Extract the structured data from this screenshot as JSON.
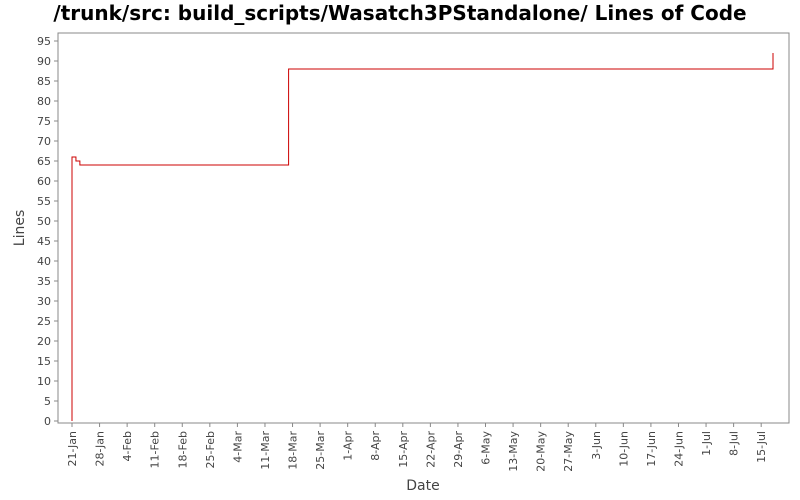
{
  "chart_data": {
    "type": "line",
    "title": "/trunk/src: build_scripts/Wasatch3PStandalone/ Lines of Code",
    "xlabel": "Date",
    "ylabel": "Lines",
    "ylim": [
      0,
      97
    ],
    "yticks": [
      0,
      5,
      10,
      15,
      20,
      25,
      30,
      35,
      40,
      45,
      50,
      55,
      60,
      65,
      70,
      75,
      80,
      85,
      90,
      95
    ],
    "xlim": [
      "2007-01-20",
      "2007-07-19"
    ],
    "xticks": [
      {
        "date": "2007-01-21",
        "label": "21-Jan"
      },
      {
        "date": "2007-01-28",
        "label": "28-Jan"
      },
      {
        "date": "2007-02-04",
        "label": "4-Feb"
      },
      {
        "date": "2007-02-11",
        "label": "11-Feb"
      },
      {
        "date": "2007-02-18",
        "label": "18-Feb"
      },
      {
        "date": "2007-02-25",
        "label": "25-Feb"
      },
      {
        "date": "2007-03-04",
        "label": "4-Mar"
      },
      {
        "date": "2007-03-11",
        "label": "11-Mar"
      },
      {
        "date": "2007-03-18",
        "label": "18-Mar"
      },
      {
        "date": "2007-03-25",
        "label": "25-Mar"
      },
      {
        "date": "2007-04-01",
        "label": "1-Apr"
      },
      {
        "date": "2007-04-08",
        "label": "8-Apr"
      },
      {
        "date": "2007-04-15",
        "label": "15-Apr"
      },
      {
        "date": "2007-04-22",
        "label": "22-Apr"
      },
      {
        "date": "2007-04-29",
        "label": "29-Apr"
      },
      {
        "date": "2007-05-06",
        "label": "6-May"
      },
      {
        "date": "2007-05-13",
        "label": "13-May"
      },
      {
        "date": "2007-05-20",
        "label": "20-May"
      },
      {
        "date": "2007-05-27",
        "label": "27-May"
      },
      {
        "date": "2007-06-03",
        "label": "3-Jun"
      },
      {
        "date": "2007-06-10",
        "label": "10-Jun"
      },
      {
        "date": "2007-06-17",
        "label": "17-Jun"
      },
      {
        "date": "2007-06-24",
        "label": "24-Jun"
      },
      {
        "date": "2007-07-01",
        "label": "1-Jul"
      },
      {
        "date": "2007-07-08",
        "label": "8-Jul"
      },
      {
        "date": "2007-07-15",
        "label": "15-Jul"
      }
    ],
    "step": true,
    "grid": false,
    "legend": "none",
    "series": [
      {
        "color": "#cc0000",
        "points": [
          {
            "date": "2007-01-21",
            "value": 0
          },
          {
            "date": "2007-01-21",
            "value": 66
          },
          {
            "date": "2007-01-22",
            "value": 65
          },
          {
            "date": "2007-01-23",
            "value": 64
          },
          {
            "date": "2007-03-17",
            "value": 88
          },
          {
            "date": "2007-07-18",
            "value": 92
          }
        ]
      }
    ]
  }
}
